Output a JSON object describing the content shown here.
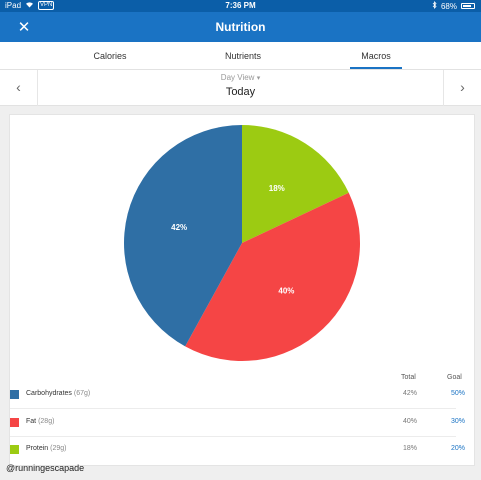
{
  "status_bar": {
    "device": "iPad",
    "vpn": "VPN",
    "time": "7:36 PM",
    "battery": "68%"
  },
  "header": {
    "title": "Nutrition",
    "close_glyph": "✕"
  },
  "tabs": [
    {
      "label": "Calories"
    },
    {
      "label": "Nutrients"
    },
    {
      "label": "Macros",
      "active": true
    }
  ],
  "date_nav": {
    "view_label": "Day View",
    "date": "Today",
    "prev_glyph": "‹",
    "next_glyph": "›"
  },
  "colors": {
    "header": "#1a73c4",
    "carbohydrates": "#2f6fa5",
    "fat": "#f54545",
    "protein": "#9ccb12"
  },
  "chart_data": {
    "type": "pie",
    "slices": [
      {
        "name": "Protein",
        "value": 18,
        "label": "18%",
        "color": "#9ccb12"
      },
      {
        "name": "Fat",
        "value": 40,
        "label": "40%",
        "color": "#f54545"
      },
      {
        "name": "Carbohydrates",
        "value": 42,
        "label": "42%",
        "color": "#2f6fa5"
      }
    ]
  },
  "legend": {
    "total_header": "Total",
    "goal_header": "Goal",
    "rows": [
      {
        "name": "Carbohydrates",
        "amount": "(67g)",
        "total": "42%",
        "goal": "50%",
        "color": "#2f6fa5"
      },
      {
        "name": "Fat",
        "amount": "(28g)",
        "total": "40%",
        "goal": "30%",
        "color": "#f54545"
      },
      {
        "name": "Protein",
        "amount": "(29g)",
        "total": "18%",
        "goal": "20%",
        "color": "#9ccb12"
      }
    ]
  },
  "watermark": "@runningescapade"
}
